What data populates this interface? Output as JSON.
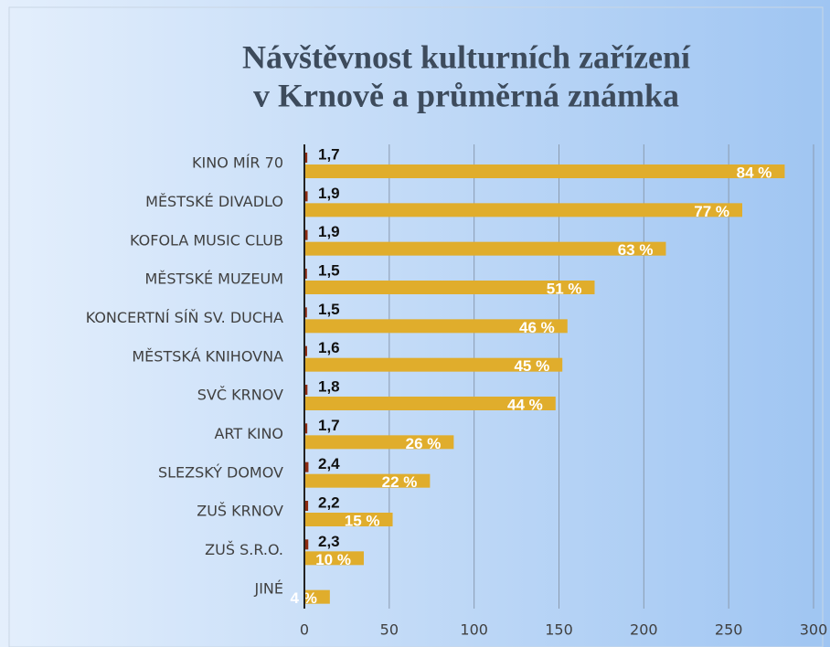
{
  "chart_data": {
    "type": "bar",
    "orientation": "horizontal",
    "title": [
      "Návštěvnost kulturních zařízení",
      "v Krnově a průměrná známka"
    ],
    "categories": [
      "KINO MÍR 70",
      "MĚSTSKÉ DIVADLO",
      "KOFOLA MUSIC CLUB",
      "MĚSTSKÉ MUZEUM",
      "KONCERTNÍ SÍŇ SV. DUCHA",
      "MĚSTSKÁ KNIHOVNA",
      "SVČ KRNOV",
      "ART KINO",
      "SLEZSKÝ DOMOV",
      "ZUŠ KRNOV",
      "ZUŠ S.R.O.",
      "JINÉ"
    ],
    "series": [
      {
        "color": "#8e2b10",
        "values": [
          1.7,
          1.9,
          1.9,
          1.5,
          1.5,
          1.6,
          1.8,
          1.7,
          2.4,
          2.2,
          2.3,
          null
        ],
        "value_labels": [
          "1,7",
          "1,9",
          "1,9",
          "1,5",
          "1,5",
          "1,6",
          "1,8",
          "1,7",
          "2,4",
          "2,2",
          "2,3",
          null
        ]
      },
      {
        "color": "#e0ad2c",
        "values": [
          283,
          258,
          213,
          171,
          155,
          152,
          148,
          88,
          74,
          52,
          35,
          15
        ],
        "percent_labels": [
          "84 %",
          "77 %",
          "63 %",
          "51 %",
          "46 %",
          "45 %",
          "44 %",
          "26 %",
          "22 %",
          "15 %",
          "10 %",
          "4 %"
        ]
      }
    ],
    "xlim": [
      0,
      300
    ],
    "xticks": [
      0,
      50,
      100,
      150,
      200,
      250,
      300
    ],
    "grid": true
  }
}
